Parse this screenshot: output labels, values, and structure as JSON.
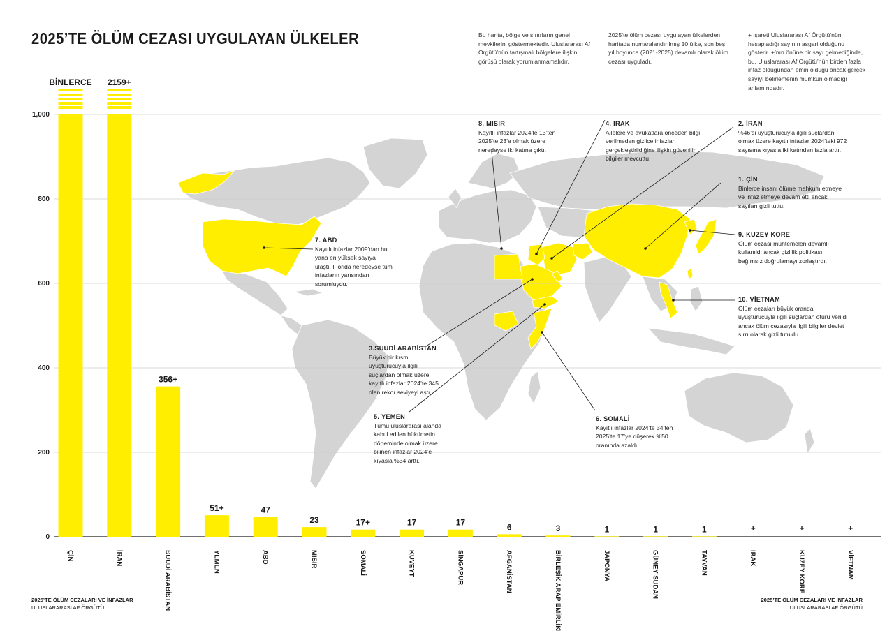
{
  "title": "2025’TE ÖLÜM CEZASI UYGULAYAN ÜLKELER",
  "header_notes": [
    "Bu harita, bölge ve sınırların genel mevkilerini göstermektedir. Uluslararası Af Örgütü’nün tartışmalı bölgelere ilişkin görüşü olarak yorumlanmamalıdır.",
    "2025’te ölüm cezası uygulayan ülkelerden haritada numaralandırılmış 10 ülke, son beş yıl boyunca (2021-2025) devamlı olarak ölüm cezası uyguladı.",
    "+ işareti Uluslararası Af Örgütü’nün hesapladığı sayının asgari olduğunu gösterir. +’nın önüne bir sayı gelmediğinde, bu, Uluslararası Af Örgütü’nün birden fazla infaz olduğundan emin olduğu ancak gerçek sayıyı belirlemenin mümkün olmadığı anlamındadır."
  ],
  "chart_data": {
    "type": "bar",
    "categories": [
      "ÇİN",
      "İRAN",
      "SUUDİ ARABİSTAN",
      "YEMEN",
      "ABD",
      "MISIR",
      "SOMALİ",
      "KUVEYT",
      "SİNGAPUR",
      "AFGANİSTAN",
      "BİRLEŞİK ARAP EMİRLİKLERİ",
      "JAPONYA",
      "GÜNEY SUDAN",
      "TAYVAN",
      "IRAK",
      "KUZEY KORE",
      "VİETNAM"
    ],
    "values": [
      null,
      2159,
      356,
      51,
      47,
      23,
      17,
      17,
      17,
      6,
      3,
      1,
      1,
      1,
      null,
      null,
      null
    ],
    "value_labels": [
      "BİNLERCE",
      "2159+",
      "356+",
      "51+",
      "47",
      "23",
      "17+",
      "17",
      "17",
      "6",
      "3",
      "1",
      "1",
      "1",
      "+",
      "+",
      "+"
    ],
    "y_ticks": [
      "0",
      "200",
      "400",
      "600",
      "800",
      "1,000"
    ],
    "ylim": [
      0,
      1000
    ],
    "grid": true,
    "bar_color": "#ffee00",
    "note": "ÇİN ve İRAN sütunları ölçek dışı (kesikli)"
  },
  "map_colors": {
    "highlight": "#ffee00",
    "land": "#d4d4d4",
    "border": "#ffffff"
  },
  "annotations": [
    {
      "id": "misir",
      "heading": "8. MISIR",
      "text": "Kayıtlı infazlar 2024’te 13’ten 2025’te 23’e olmak üzere neredeyse iki katına çıktı."
    },
    {
      "id": "irak",
      "heading": "4. IRAK",
      "text": "Ailelere ve avukatlara önceden bilgi verilmeden gizlice infazlar gerçekleştirildiğine ilişkin güvenilir bilgiler mevcuttu."
    },
    {
      "id": "iran",
      "heading": "2. İRAN",
      "text": "%46’sı uyuşturucuyla ilgili suçlardan olmak üzere kayıtlı infazlar 2024’teki 972 sayısına kıyasla iki katından fazla arttı."
    },
    {
      "id": "cin",
      "heading": "1. ÇİN",
      "text": "Binlerce insanı ölüme mahkum etmeye ve infaz etmeye devam etti ancak sayıları gizli tuttu."
    },
    {
      "id": "kuzeykore",
      "heading": "9. KUZEY KORE",
      "text": "Ölüm cezası muhtemelen devamlı kullanıldı ancak gizlilik politikası bağımsız doğrulamayı zorlaştırdı."
    },
    {
      "id": "vietnam",
      "heading": "10. VİETNAM",
      "text": "Ölüm cezaları büyük oranda uyuşturucuyla ilgili suçlardan ötürü verildi ancak ölüm cezasıyla ilgili bilgiler devlet sırrı olarak gizli tutuldu."
    },
    {
      "id": "abd",
      "heading": "7. ABD",
      "text": "Kayıtlı infazlar 2009’dan bu yana en yüksek sayıya ulaştı, Florida neredeyse tüm infazların yarısından sorumluydu."
    },
    {
      "id": "suudi",
      "heading": "3.SUUDİ ARABİSTAN",
      "text": "Büyük bir kısmı uyuşturucuyla ilgili suçlardan olmak üzere kayıtlı infazlar 2024’te 345 olan rekor seviyeyi aştı."
    },
    {
      "id": "yemen",
      "heading": "5. YEMEN",
      "text": "Tümü uluslararası alanda kabul edilen hükümetin döneminde olmak üzere bilinen infazlar 2024’e kıyasla %34 arttı."
    },
    {
      "id": "somali",
      "heading": "6. SOMALİ",
      "text": "Kayıtlı infazlar 2024’te 34’ten 2025’te 17’ye düşerek %50 oranında azaldı."
    }
  ],
  "footer_left": {
    "title": "2025’TE ÖLÜM CEZALARI VE İNFAZLAR",
    "org": "ULUSLARARASI AF ÖRGÜTÜ"
  },
  "footer_right": {
    "title": "2025’TE ÖLÜM CEZALARI VE İNFAZLAR",
    "org": "ULUSLARARASI AF ÖRGÜTÜ"
  }
}
